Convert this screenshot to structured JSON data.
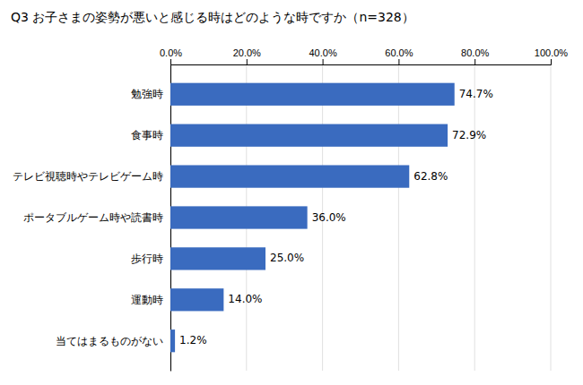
{
  "chart_data": {
    "type": "bar",
    "orientation": "horizontal",
    "title": "Q3 お子さまの姿勢が悪いと感じる時はどのような時ですか（n=328）",
    "categories": [
      "勉強時",
      "食事時",
      "テレビ視聴時やテレビゲーム時",
      "ポータブルゲーム時や読書時",
      "歩行時",
      "運動時",
      "当てはまるものがない"
    ],
    "values": [
      74.7,
      72.9,
      62.8,
      36.0,
      25.0,
      14.0,
      1.2
    ],
    "value_labels": [
      "74.7%",
      "72.9%",
      "62.8%",
      "36.0%",
      "25.0%",
      "14.0%",
      "1.2%"
    ],
    "data_labels": true,
    "color": "#3a6bbf",
    "xlim": [
      0,
      100
    ],
    "xticks": [
      {
        "value": 0,
        "label": "0.0%"
      },
      {
        "value": 20,
        "label": "20.0%"
      },
      {
        "value": 40,
        "label": "40.0%"
      },
      {
        "value": 60,
        "label": "60.0%"
      },
      {
        "value": 80,
        "label": "80.0%"
      },
      {
        "value": 100,
        "label": "100.0%"
      }
    ],
    "grid": true
  }
}
